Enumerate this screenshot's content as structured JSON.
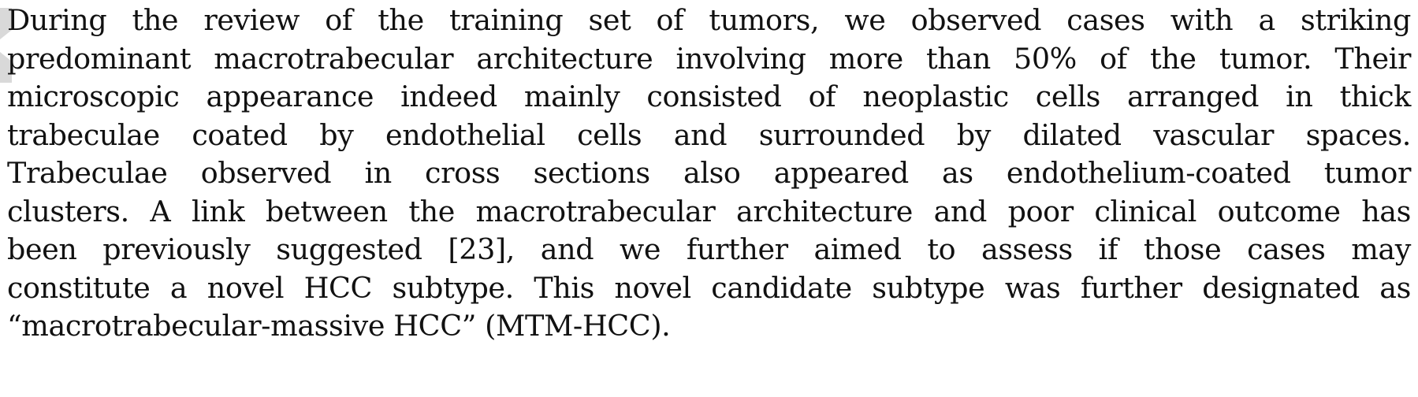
{
  "document": {
    "lines": [
      "During the review of the training set of tumors, we observed cases with a striking",
      "predominant macrotrabecular architecture involving more than 50% of the tumor. Their",
      "microscopic appearance indeed mainly consisted of neoplastic cells arranged in thick",
      "trabeculae coated by endothelial cells and surrounded by dilated vascular spaces.",
      "Trabeculae observed in cross sections also appeared as endothelium-coated tumor",
      "clusters. A link between the macrotrabecular architecture and poor clinical outcome has",
      "been previously suggested [23], and we further aimed to assess if those cases may",
      "constitute a novel HCC subtype. This novel candidate subtype was further designated as",
      "“macrotrabecular-massive HCC” (MTM-HCC)."
    ]
  },
  "colors": {
    "text": "#111111",
    "watermark": "#d9d9d9"
  }
}
